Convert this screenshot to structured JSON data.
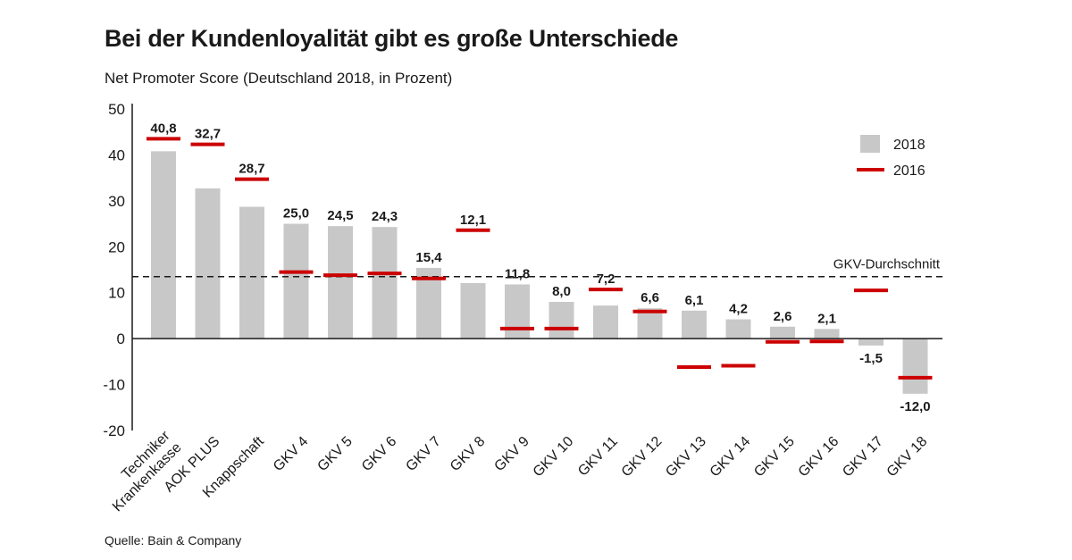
{
  "title": "Bei der Kundenloyalität gibt es große Unterschiede",
  "subtitle": "Net Promoter Score (Deutschland 2018, in Prozent)",
  "source": "Quelle: Bain & Company",
  "colors": {
    "bar_2018": "#c8c8c8",
    "marker_2016": "#cc0000",
    "axis": "#1a1a1a"
  },
  "chart_data": {
    "type": "bar",
    "title": "",
    "xlabel": "",
    "ylabel": "",
    "ylim": [
      -20,
      50
    ],
    "yticks": [
      "50",
      "40",
      "30",
      "20",
      "10",
      "0",
      "-10",
      "-20"
    ],
    "ytick_values": [
      50,
      40,
      30,
      20,
      10,
      0,
      -10,
      -20
    ],
    "categories": [
      [
        "Techniker",
        "Krankenkasse"
      ],
      [
        "AOK PLUS"
      ],
      [
        "Knappschaft"
      ],
      [
        "GKV 4"
      ],
      [
        "GKV 5"
      ],
      [
        "GKV 6"
      ],
      [
        "GKV 7"
      ],
      [
        "GKV 8"
      ],
      [
        "GKV 9"
      ],
      [
        "GKV 10"
      ],
      [
        "GKV 11"
      ],
      [
        "GKV 12"
      ],
      [
        "GKV 13"
      ],
      [
        "GKV 14"
      ],
      [
        "GKV 15"
      ],
      [
        "GKV 16"
      ],
      [
        "GKV 17"
      ],
      [
        "GKV 18"
      ]
    ],
    "series": [
      {
        "name": "2018",
        "kind": "bar",
        "values": [
          40.8,
          32.7,
          28.7,
          25.0,
          24.5,
          24.3,
          15.4,
          12.1,
          11.8,
          8.0,
          7.2,
          6.6,
          6.1,
          4.2,
          2.6,
          2.1,
          -1.5,
          -12.0
        ],
        "labels": [
          "40,8",
          "32,7",
          "28,7",
          "25,0",
          "24,5",
          "24,3",
          "15,4",
          "12,1",
          "11,8",
          "8,0",
          "7,2",
          "6,6",
          "6,1",
          "4,2",
          "2,6",
          "2,1",
          "-1,5",
          "-12,0"
        ]
      },
      {
        "name": "2016",
        "kind": "marker",
        "values": [
          43.5,
          42.3,
          34.7,
          14.5,
          13.8,
          14.2,
          13.1,
          23.6,
          2.2,
          2.2,
          10.7,
          5.9,
          -6.2,
          -5.9,
          -0.7,
          -0.6,
          10.5,
          -8.5
        ]
      }
    ],
    "reference_line": {
      "label": "GKV-Durchschnitt",
      "value": 13.5
    },
    "legend_position": "top-right",
    "grid": false
  }
}
